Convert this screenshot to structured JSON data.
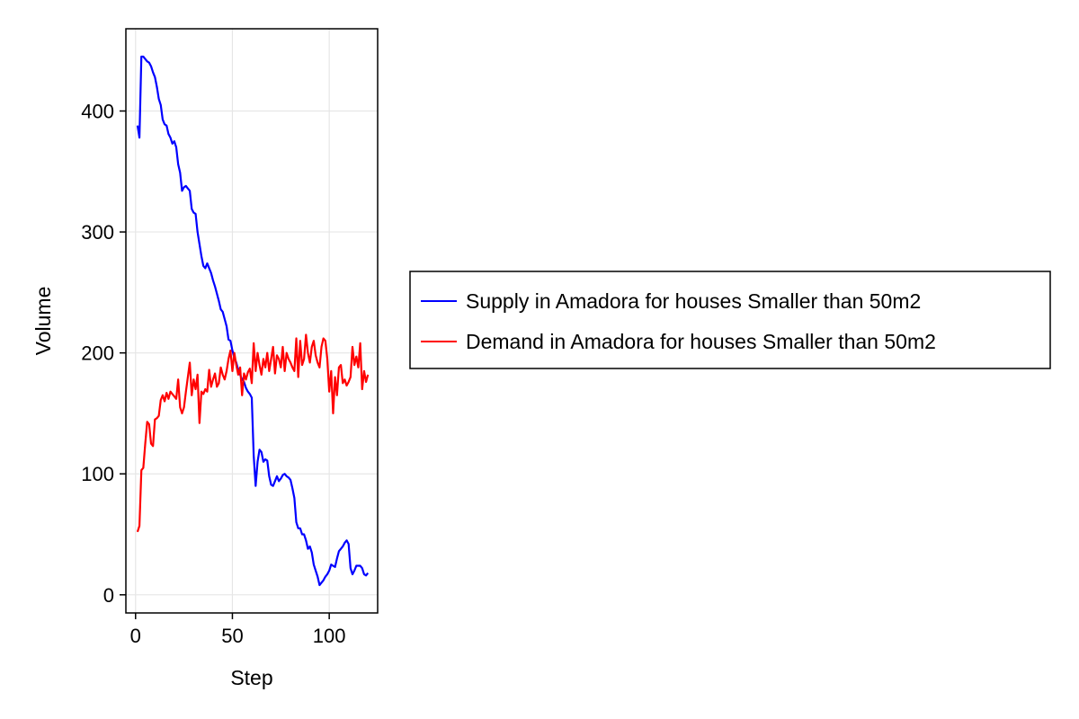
{
  "chart_data": {
    "type": "line",
    "title": "",
    "xlabel": "Step",
    "ylabel": "Volume",
    "xlim": [
      -5,
      125
    ],
    "ylim": [
      -15,
      468
    ],
    "xticks": [
      0,
      50,
      100
    ],
    "yticks": [
      0,
      100,
      200,
      300,
      400
    ],
    "grid": true,
    "legend_position": "right",
    "x": [
      1,
      2,
      3,
      4,
      5,
      6,
      7,
      8,
      9,
      10,
      11,
      12,
      13,
      14,
      15,
      16,
      17,
      18,
      19,
      20,
      21,
      22,
      23,
      24,
      25,
      26,
      27,
      28,
      29,
      30,
      31,
      32,
      33,
      34,
      35,
      36,
      37,
      38,
      39,
      40,
      41,
      42,
      43,
      44,
      45,
      46,
      47,
      48,
      49,
      50,
      51,
      52,
      53,
      54,
      55,
      56,
      57,
      58,
      59,
      60,
      61,
      62,
      63,
      64,
      65,
      66,
      67,
      68,
      69,
      70,
      71,
      72,
      73,
      74,
      75,
      76,
      77,
      78,
      79,
      80,
      81,
      82,
      83,
      84,
      85,
      86,
      87,
      88,
      89,
      90,
      91,
      92,
      93,
      94,
      95,
      96,
      97,
      98,
      99,
      100,
      101,
      102,
      103,
      104,
      105,
      106,
      107,
      108,
      109,
      110,
      111,
      112,
      113,
      114,
      115,
      116,
      117,
      118,
      119,
      120
    ],
    "series": [
      {
        "name": "Supply in Amadora for houses Smaller than 50m2",
        "color": "#0000ff",
        "values": [
          388,
          378,
          445,
          445,
          443,
          441,
          440,
          437,
          432,
          428,
          420,
          410,
          405,
          393,
          389,
          388,
          381,
          378,
          373,
          375,
          370,
          356,
          349,
          334,
          337,
          338,
          336,
          334,
          319,
          316,
          315,
          300,
          290,
          280,
          272,
          270,
          274,
          270,
          266,
          260,
          255,
          249,
          243,
          236,
          234,
          228,
          222,
          211,
          210,
          202,
          196,
          192,
          186,
          182,
          178,
          176,
          171,
          168,
          166,
          163,
          115,
          90,
          110,
          120,
          118,
          110,
          112,
          111,
          98,
          91,
          90,
          94,
          98,
          94,
          96,
          99,
          100,
          98,
          97,
          95,
          88,
          80,
          60,
          55,
          55,
          50,
          50,
          45,
          38,
          40,
          35,
          25,
          20,
          15,
          8,
          10,
          12,
          15,
          17,
          20,
          25,
          24,
          23,
          30,
          36,
          38,
          40,
          43,
          45,
          42,
          22,
          17,
          20,
          24,
          24,
          24,
          22,
          17,
          16,
          18
        ],
        "label_color": "#0000ff"
      },
      {
        "name": "Demand in Amadora for houses Smaller than 50m2",
        "color": "#ff0000",
        "values": [
          52,
          57,
          103,
          105,
          125,
          143,
          141,
          125,
          123,
          145,
          146,
          148,
          161,
          165,
          160,
          167,
          162,
          168,
          166,
          164,
          162,
          178,
          155,
          150,
          155,
          168,
          180,
          192,
          165,
          178,
          170,
          182,
          142,
          168,
          166,
          170,
          168,
          186,
          172,
          178,
          183,
          172,
          175,
          188,
          182,
          178,
          185,
          195,
          202,
          185,
          200,
          190,
          182,
          188,
          165,
          183,
          178,
          184,
          187,
          175,
          208,
          185,
          200,
          190,
          182,
          195,
          188,
          200,
          185,
          195,
          205,
          183,
          198,
          195,
          188,
          205,
          185,
          200,
          195,
          192,
          188,
          185,
          212,
          180,
          210,
          190,
          195,
          215,
          200,
          192,
          205,
          210,
          198,
          192,
          188,
          205,
          212,
          210,
          195,
          168,
          185,
          150,
          180,
          165,
          188,
          190,
          175,
          178,
          173,
          176,
          180,
          205,
          190,
          197,
          188,
          208,
          170,
          185,
          176,
          182
        ]
      }
    ]
  },
  "colors": {
    "background": "#ffffff",
    "grid": "#e6e6e6",
    "axis": "#000000"
  }
}
